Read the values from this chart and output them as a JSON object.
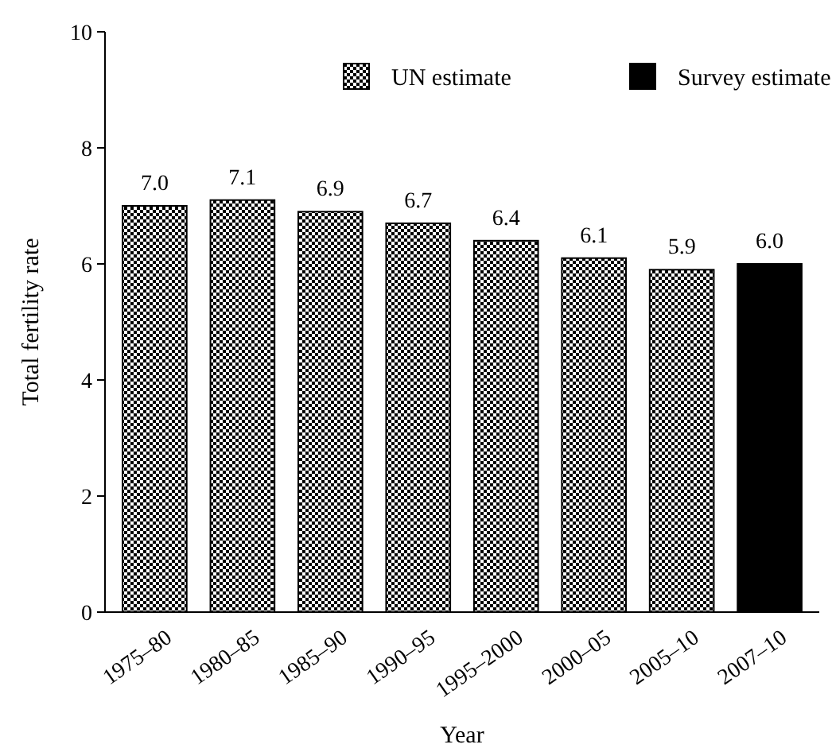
{
  "chart_data": {
    "type": "bar",
    "xlabel": "Year",
    "ylabel": "Total fertility rate",
    "categories": [
      "1975–80",
      "1980–85",
      "1985–90",
      "1990–95",
      "1995–2000",
      "2000–05",
      "2005–10",
      "2007–10"
    ],
    "stacked": true,
    "series": [
      {
        "name": "UN estimate",
        "color": "#000000",
        "values": [
          7.0,
          7.1,
          6.9,
          6.7,
          6.4,
          6.1,
          5.9,
          null
        ],
        "value_labels": [
          "7.0",
          "7.1",
          "6.9",
          "6.7",
          "6.4",
          "6.1",
          "5.9",
          null
        ]
      },
      {
        "name": "Survey estimate",
        "color": "#000000",
        "values": [
          null,
          null,
          null,
          null,
          null,
          null,
          null,
          6.0
        ],
        "value_labels": [
          null,
          null,
          null,
          null,
          null,
          null,
          null,
          "6.0"
        ]
      }
    ],
    "ylim": [
      0,
      10
    ],
    "yticks": [
      0,
      2,
      4,
      6,
      8,
      10
    ],
    "legend": "top"
  }
}
